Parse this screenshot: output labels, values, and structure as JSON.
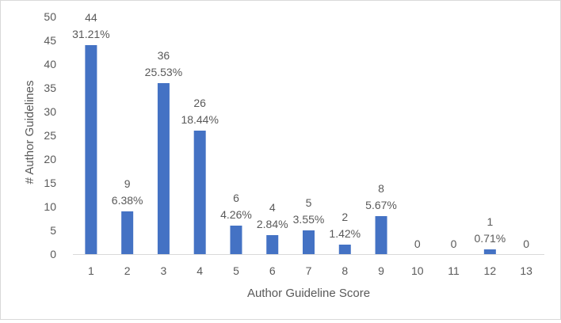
{
  "chart_data": {
    "type": "bar",
    "title": "",
    "xlabel": "Author Guideline Score",
    "ylabel": "# Author Guidelines",
    "ylim": [
      0,
      50
    ],
    "yticks": [
      0,
      5,
      10,
      15,
      20,
      25,
      30,
      35,
      40,
      45,
      50
    ],
    "grid": false,
    "legend": "none",
    "bar_color": "#4472C4",
    "categories": [
      "1",
      "2",
      "3",
      "4",
      "5",
      "6",
      "7",
      "8",
      "9",
      "10",
      "11",
      "12",
      "13"
    ],
    "values": [
      44,
      9,
      36,
      26,
      6,
      4,
      5,
      2,
      8,
      0,
      0,
      1,
      0
    ],
    "percent_labels": [
      "31.21%",
      "6.38%",
      "25.53%",
      "18.44%",
      "4.26%",
      "2.84%",
      "3.55%",
      "1.42%",
      "5.67%",
      "",
      "",
      "0.71%",
      ""
    ]
  }
}
